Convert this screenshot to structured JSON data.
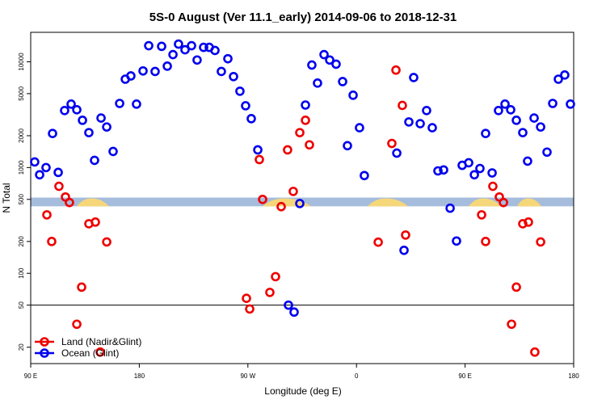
{
  "chart_data": {
    "type": "scatter",
    "title": "5S-0 August (Ver 11.1_early)   2014-09-06 to 2018-12-31",
    "x_label": "Longitude (deg E)",
    "y_label": "N Total",
    "log_y": true,
    "xlim": [
      90,
      540
    ],
    "ylim": [
      14,
      19000
    ],
    "xticks": [
      {
        "value": 90,
        "label": "90 E"
      },
      180,
      {
        "value": 270,
        "label": "90 W"
      },
      {
        "value": 360,
        "label": "0"
      },
      {
        "value": 450,
        "label": "90 E"
      },
      {
        "value": 540,
        "label": "180"
      }
    ],
    "yticks": [
      20,
      50,
      100,
      200,
      500,
      1000,
      2000,
      5000,
      10000
    ],
    "reference_line": 50,
    "band_range": [
      430,
      520
    ],
    "band_color": "#a6bcdc",
    "land_color": "#f5d77a",
    "legend_position": "bottom-left",
    "series": [
      {
        "name": "Land (Nadir&Glint)",
        "color": "#ee0000",
        "x": [
          103.4,
          107.4,
          113.4,
          118.8,
          122.1,
          132.2,
          128.2,
          138.2,
          143.6,
          147.6,
          153,
          268.8,
          271.5,
          279.5,
          282.2,
          292.9,
          288.2,
          297.6,
          302.9,
          307.6,
          313,
          317.7,
          321,
          378,
          389.3,
          392.7,
          398,
          400.7,
          463.7,
          467,
          473,
          478.4,
          481.8,
          488.5,
          492.5,
          497.8,
          502.5,
          507.8,
          512.6
        ],
        "values": [
          357,
          200,
          665,
          527,
          467,
          74,
          33,
          294,
          305,
          18,
          198,
          58,
          46,
          1190,
          500,
          93,
          66,
          427,
          1470,
          595,
          2140,
          2800,
          1640,
          197,
          1690,
          8350,
          3870,
          230,
          357,
          200,
          665,
          527,
          467,
          33,
          74,
          294,
          305,
          18,
          198
        ]
      },
      {
        "name": "Ocean (Glint)",
        "color": "#0000ee",
        "x": [
          93.3,
          97.4,
          102.7,
          108.1,
          112.8,
          118.1,
          123.5,
          128.2,
          132.9,
          138.2,
          142.9,
          148.3,
          153,
          158.3,
          163.7,
          168.4,
          173,
          177.7,
          183.1,
          187.8,
          193.1,
          198.5,
          203.2,
          207.9,
          212.5,
          217.9,
          223.3,
          227.9,
          233.3,
          238,
          242.7,
          248,
          253.4,
          258.1,
          263.4,
          268.1,
          272.8,
          278.2,
          313,
          317.7,
          323,
          327.7,
          333.1,
          337.8,
          343.1,
          348.5,
          352.5,
          357.2,
          362.5,
          366.5,
          393.4,
          399.4,
          403.4,
          407.4,
          412.8,
          418.1,
          422.8,
          427.5,
          432.2,
          437.6,
          442.9,
          447.6,
          453,
          457.7,
          462.3,
          467,
          472.4,
          477.7,
          483.1,
          487.8,
          492.5,
          497.8,
          501.8,
          507.2,
          512.6,
          517.9,
          522.6,
          527.3,
          532.6,
          537.3,
          303.6,
          308.3
        ],
        "values": [
          1130,
          855,
          1000,
          2100,
          900,
          3460,
          3980,
          3520,
          2800,
          2140,
          1170,
          2940,
          2420,
          1420,
          4040,
          6850,
          7350,
          3980,
          8200,
          14200,
          8100,
          14000,
          9100,
          11700,
          14700,
          13000,
          14200,
          10400,
          13700,
          13700,
          12800,
          8100,
          10700,
          7250,
          5270,
          3840,
          2900,
          1470,
          457,
          3900,
          9320,
          6290,
          11700,
          10400,
          9500,
          6500,
          1610,
          4830,
          2380,
          840,
          1370,
          165,
          2700,
          7100,
          2600,
          3460,
          2380,
          930,
          950,
          413,
          202,
          1050,
          1110,
          855,
          980,
          2100,
          890,
          3460,
          3980,
          3520,
          2800,
          2140,
          1150,
          2940,
          2420,
          1400,
          4040,
          6850,
          7500,
          3980,
          50,
          43
        ]
      }
    ]
  }
}
